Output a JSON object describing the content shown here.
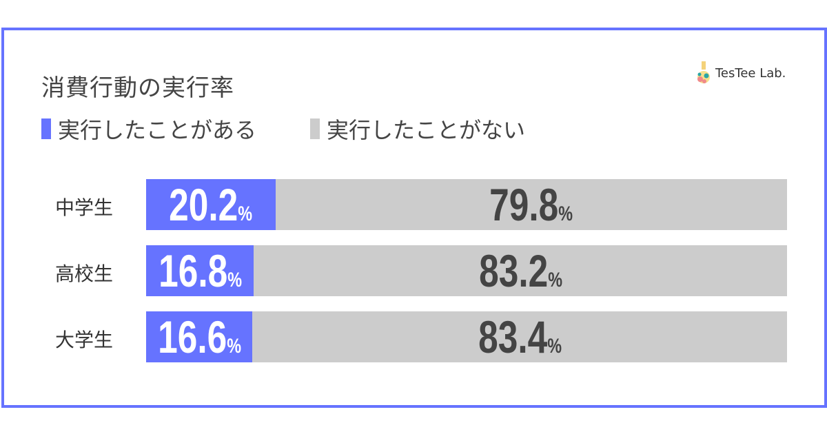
{
  "chart_data": {
    "type": "bar",
    "stacked": true,
    "orientation": "horizontal",
    "title": "消費行動の実行率",
    "categories": [
      "中学生",
      "高校生",
      "大学生"
    ],
    "series": [
      {
        "name": "実行したことがある",
        "color": "#6673ff",
        "values": [
          20.2,
          16.8,
          16.6
        ]
      },
      {
        "name": "実行したことがない",
        "color": "#cccccc",
        "values": [
          79.8,
          83.2,
          83.4
        ]
      }
    ],
    "unit": "%",
    "xlim": [
      0,
      100
    ],
    "legend": "top-left"
  },
  "logo": {
    "text": "TesTee Lab."
  }
}
